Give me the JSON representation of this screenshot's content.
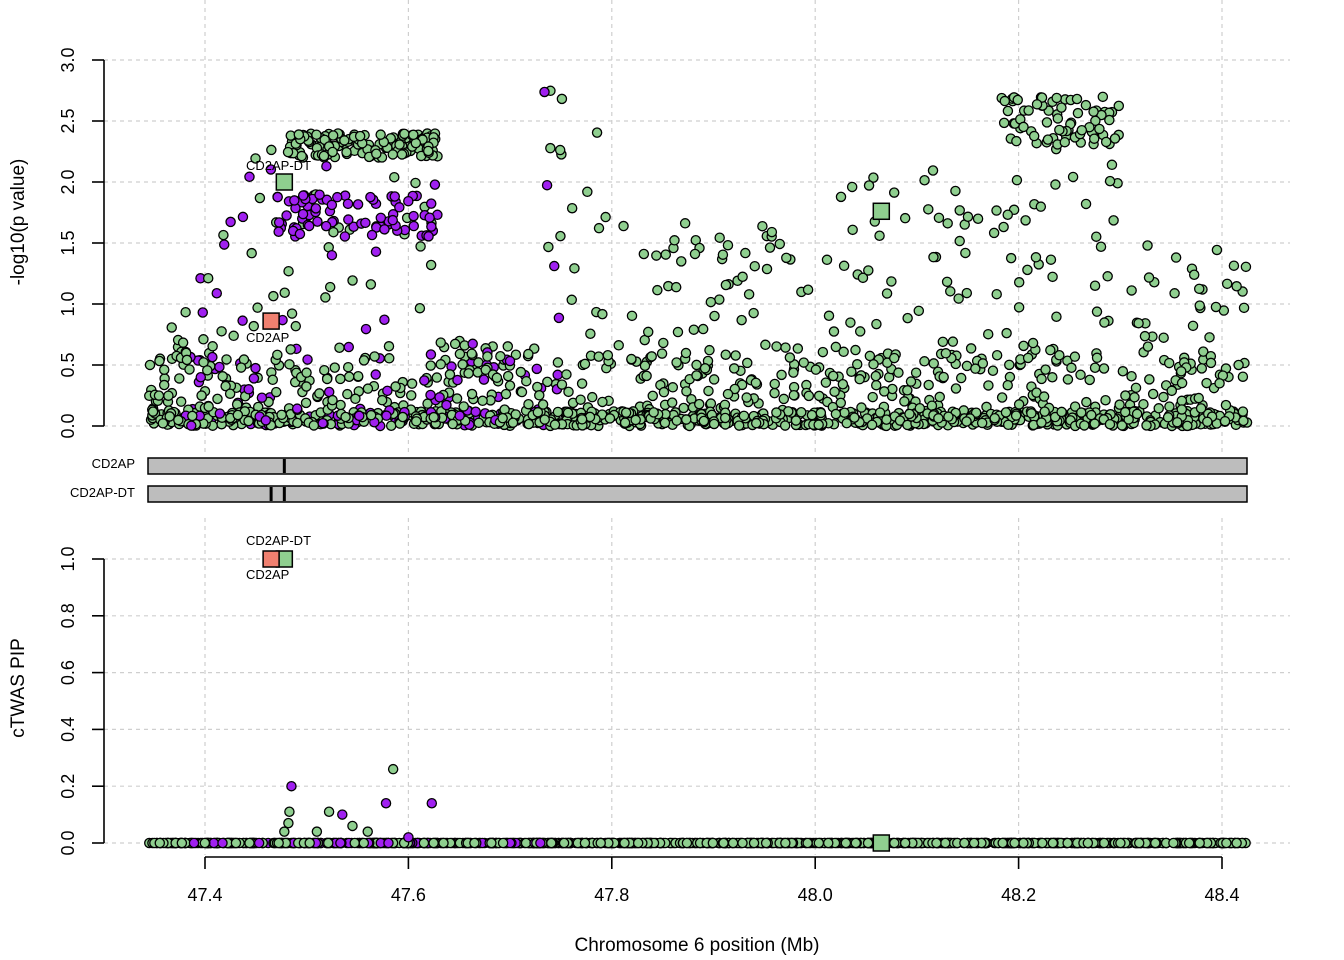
{
  "chart_data": [
    {
      "type": "scatter",
      "panel": "top",
      "ylabel": "-log10(p value)",
      "ylim": [
        0,
        3
      ],
      "xlim": [
        47.34,
        48.43
      ],
      "yticks": [
        "0.0",
        "0.5",
        "1.0",
        "1.5",
        "2.0",
        "2.5",
        "3.0"
      ],
      "grid": true,
      "series": [
        {
          "kind": "snp",
          "color": "#8fcf8f",
          "note": "non-CS SNPs (dense cloud)"
        },
        {
          "kind": "snp",
          "color": "#a020f0",
          "note": "credible-set SNPs"
        }
      ],
      "genes": [
        {
          "label": "CD2AP-DT",
          "x": 47.478,
          "y": 2.0,
          "color": "#8fcf8f"
        },
        {
          "label": "CD2AP",
          "x": 47.465,
          "y": 0.86,
          "color": "#f08070"
        },
        {
          "label": "",
          "x": 48.065,
          "y": 1.76,
          "color": "#8fcf8f"
        }
      ]
    },
    {
      "type": "gene-track",
      "panel": "middle",
      "tracks": [
        {
          "label": "CD2AP",
          "marks": [
            47.478
          ]
        },
        {
          "label": "CD2AP-DT",
          "marks": [
            47.465,
            47.478
          ]
        }
      ],
      "color": "#bdbdbd"
    },
    {
      "type": "scatter",
      "panel": "bottom",
      "ylabel": "cTWAS PIP",
      "xlabel": "Chromosome 6 position (Mb)",
      "ylim": [
        0,
        1
      ],
      "xlim": [
        47.34,
        48.43
      ],
      "yticks": [
        "0.0",
        "0.2",
        "0.4",
        "0.6",
        "0.8",
        "1.0"
      ],
      "xticks": [
        "47.4",
        "47.6",
        "47.8",
        "48.0",
        "48.2",
        "48.4"
      ],
      "grid": true,
      "genes": [
        {
          "label": "CD2AP-DT",
          "x": 47.478,
          "y": 1.0,
          "color": "#8fcf8f"
        },
        {
          "label": "CD2AP",
          "x": 47.465,
          "y": 1.0,
          "color": "#f08070"
        },
        {
          "label": "",
          "x": 48.065,
          "y": 0.0,
          "color": "#8fcf8f"
        }
      ],
      "highlight_points": [
        {
          "x": 47.485,
          "y": 0.2,
          "color": "#a020f0"
        },
        {
          "x": 47.535,
          "y": 0.1,
          "color": "#a020f0"
        },
        {
          "x": 47.578,
          "y": 0.14,
          "color": "#a020f0"
        },
        {
          "x": 47.585,
          "y": 0.26,
          "color": "#8fcf8f"
        },
        {
          "x": 47.623,
          "y": 0.14,
          "color": "#a020f0"
        },
        {
          "x": 47.483,
          "y": 0.11,
          "color": "#8fcf8f"
        },
        {
          "x": 47.522,
          "y": 0.11,
          "color": "#8fcf8f"
        },
        {
          "x": 47.482,
          "y": 0.07,
          "color": "#8fcf8f"
        },
        {
          "x": 47.478,
          "y": 0.04,
          "color": "#8fcf8f"
        },
        {
          "x": 47.51,
          "y": 0.04,
          "color": "#8fcf8f"
        },
        {
          "x": 47.545,
          "y": 0.06,
          "color": "#8fcf8f"
        },
        {
          "x": 47.6,
          "y": 0.02,
          "color": "#a020f0"
        },
        {
          "x": 47.56,
          "y": 0.04,
          "color": "#8fcf8f"
        }
      ]
    }
  ],
  "labels": {
    "top_ylabel": "-log10(p value)",
    "bottom_ylabel": "cTWAS PIP",
    "xlabel": "Chromosome 6 position (Mb)",
    "track1": "CD2AP",
    "track2": "CD2AP-DT",
    "top_gene_dt": "CD2AP-DT",
    "top_gene_ap": "CD2AP",
    "bottom_gene_dt": "CD2AP-DT",
    "bottom_gene_ap": "CD2AP"
  },
  "colors": {
    "green": "#8fcf8f",
    "purple": "#a020f0",
    "salmon": "#f08070",
    "track": "#bdbdbd"
  }
}
